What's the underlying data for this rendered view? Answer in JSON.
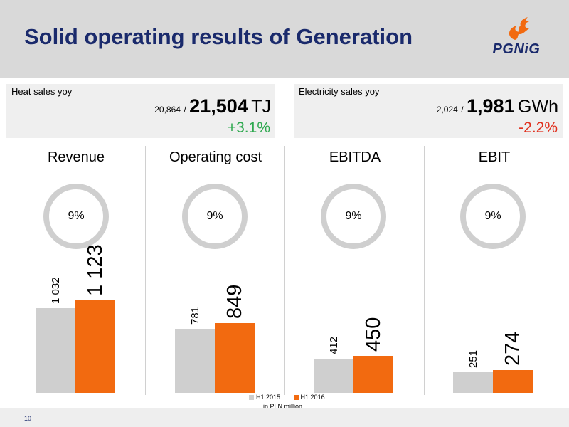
{
  "title": "Solid operating results of Generation",
  "logo": {
    "text": "PGNiG",
    "flame_color": "#f26a10",
    "text_color": "#1a2a6c"
  },
  "kpis": {
    "heat": {
      "label": "Heat sales yoy",
      "previous": "20,864",
      "separator": "/",
      "current": "21,504",
      "unit": "TJ",
      "change": "+3.1%",
      "change_color": "#2ea84f"
    },
    "electricity": {
      "label": "Electricity sales yoy",
      "previous": "2,024",
      "separator": "/",
      "current": "1,981",
      "unit": "GWh",
      "change": "-2.2%",
      "change_color": "#e0301e"
    }
  },
  "colors": {
    "h1_2015": "#cfcfcf",
    "h1_2016": "#f26a10",
    "ring": "#cfcfcf",
    "title": "#1a2a6c"
  },
  "chart_data": {
    "type": "bar",
    "categories": [
      "Revenue",
      "Operating cost",
      "EBITDA",
      "EBIT"
    ],
    "series": [
      {
        "name": "H1 2015",
        "values": [
          1032,
          781,
          412,
          251
        ],
        "labels": [
          "1 032",
          "781",
          "412",
          "251"
        ]
      },
      {
        "name": "H1 2016",
        "values": [
          1123,
          849,
          450,
          274
        ],
        "labels": [
          "1 123",
          "849",
          "450",
          "274"
        ]
      }
    ],
    "ring_labels": [
      "9%",
      "9%",
      "9%",
      "9%"
    ],
    "unit_note": "in PLN million",
    "legend_placement": "bottom-center",
    "ylim": [
      0,
      1123
    ]
  },
  "page_number": "10"
}
